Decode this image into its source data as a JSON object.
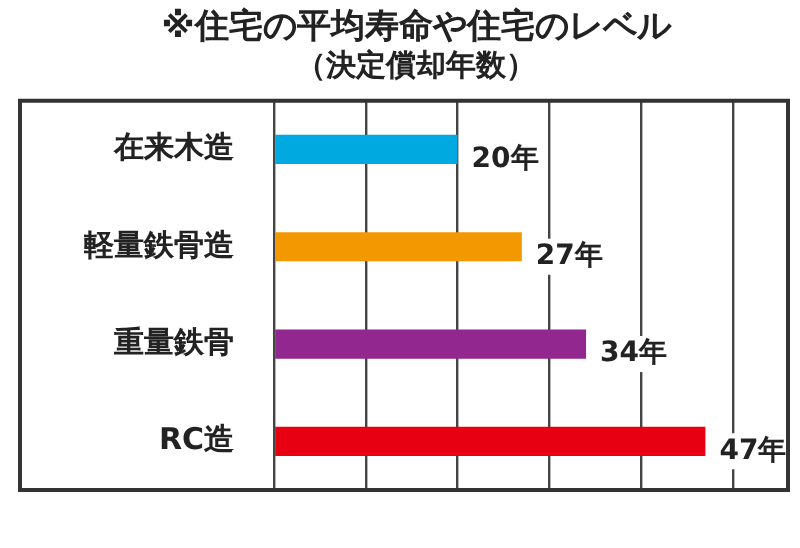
{
  "chart_data": {
    "type": "bar",
    "orientation": "horizontal",
    "title": "※住宅の平均寿命や住宅のレベル",
    "subtitle": "（決定償却年数）",
    "categories": [
      "在来木造",
      "軽量鉄骨造",
      "重量鉄骨",
      "RC造"
    ],
    "values": [
      20,
      27,
      34,
      47
    ],
    "colors": [
      "#00a9e0",
      "#f39800",
      "#92278f",
      "#e60012"
    ],
    "value_labels": [
      "20年",
      "27年",
      "34年",
      "47年"
    ],
    "xlim": [
      0,
      56
    ],
    "xticks": [
      {
        "value": 0,
        "label": null
      },
      {
        "value": 10,
        "label": null
      },
      {
        "value": 20,
        "label": null
      },
      {
        "value": 30,
        "label": null
      },
      {
        "value": 40,
        "label": null
      },
      {
        "value": 50,
        "label": null
      }
    ],
    "grid": "x",
    "tick_labels": "y",
    "legend": false
  }
}
